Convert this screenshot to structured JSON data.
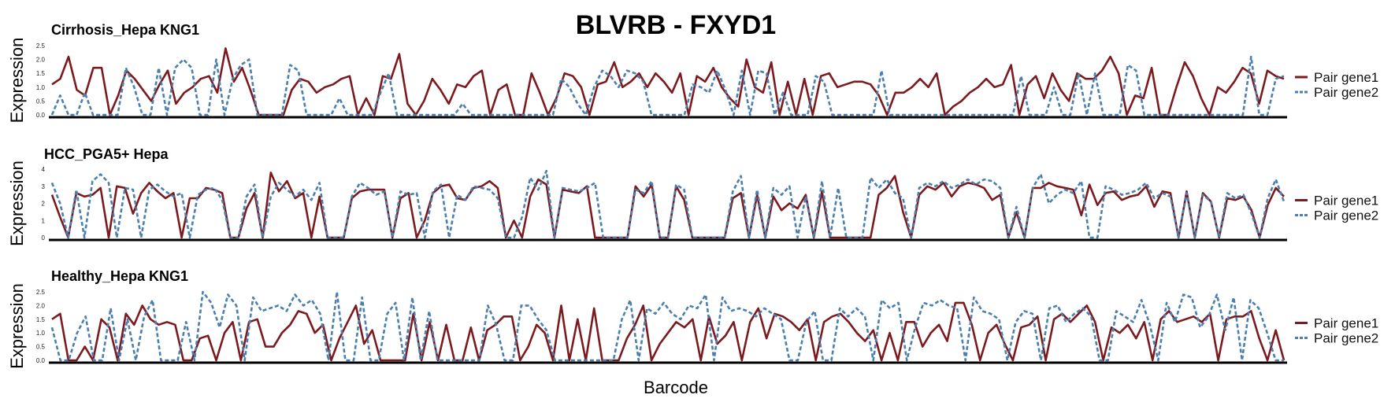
{
  "title": "BLVRB - FXYD1",
  "chart_data": {
    "type": "line",
    "title": "BLVRB - FXYD1",
    "xlabel": "Barcode",
    "ylabel": "Expression",
    "legend_position": "right",
    "colors": {
      "gene1": "#7b1a1f",
      "gene2": "#4a7fb0"
    },
    "legend": [
      "Pair gene1",
      "Pair gene2"
    ],
    "panels": [
      {
        "title": "Cirrhosis_Hepa KNG1",
        "ylim": [
          0,
          2.5
        ],
        "yticks": [
          "0.0",
          "0.5",
          "1.0",
          "1.5",
          "2.0",
          "2.5"
        ],
        "series": [
          {
            "name": "Pair gene1",
            "style": "solid",
            "values": [
              1.1,
              1.3,
              2.1,
              0.9,
              0.7,
              1.7,
              1.7,
              0.0,
              0.7,
              1.6,
              1.3,
              0.9,
              0.5,
              1.1,
              1.6,
              0.4,
              0.8,
              1.0,
              1.3,
              1.4,
              0.8,
              2.4,
              1.2,
              1.7,
              0.9,
              0.0,
              0.0,
              0.0,
              0.0,
              0.9,
              1.3,
              1.2,
              0.8,
              1.0,
              1.1,
              1.3,
              1.4,
              0.0,
              0.6,
              0.0,
              1.4,
              1.3,
              2.2,
              0.4,
              0.0,
              0.5,
              1.3,
              0.9,
              0.4,
              1.1,
              1.0,
              1.4,
              1.6,
              0.0,
              0.9,
              1.1,
              0.0,
              0.0,
              1.5,
              0.8,
              0.0,
              0.6,
              1.5,
              1.4,
              1.0,
              0.0,
              1.1,
              1.2,
              1.9,
              1.0,
              1.2,
              1.5,
              1.0,
              1.5,
              1.2,
              0.8,
              1.5,
              0.0,
              1.4,
              1.2,
              1.7,
              1.0,
              0.6,
              0.3,
              2.0,
              1.0,
              0.8,
              1.9,
              0.0,
              1.2,
              0.0,
              1.3,
              0.0,
              1.4,
              1.5,
              1.0,
              1.1,
              1.2,
              1.2,
              1.1,
              0.7,
              0.0,
              0.8,
              0.8,
              1.0,
              1.3,
              1.0,
              1.5,
              0.0,
              0.3,
              0.5,
              0.8,
              1.0,
              1.3,
              1.0,
              1.1,
              1.8,
              0.0,
              1.1,
              1.4,
              0.6,
              1.5,
              0.9,
              0.5,
              1.5,
              1.3,
              1.3,
              1.6,
              2.1,
              1.5,
              0.0,
              0.7,
              0.6,
              1.7,
              0.0,
              0.0,
              1.0,
              1.9,
              1.4,
              0.6,
              0.0,
              1.0,
              0.8,
              1.2,
              1.7,
              1.5,
              0.4,
              1.6,
              1.4,
              1.3
            ]
          },
          {
            "name": "Pair gene2",
            "style": "dashed",
            "values": [
              0.0,
              0.7,
              0.0,
              0.0,
              0.8,
              0.0,
              0.0,
              0.0,
              0.0,
              1.7,
              1.0,
              0.0,
              0.0,
              1.7,
              0.0,
              1.7,
              2.0,
              1.7,
              0.0,
              0.0,
              2.0,
              0.0,
              1.3,
              1.8,
              2.0,
              0.0,
              0.0,
              0.0,
              0.0,
              1.8,
              1.6,
              0.0,
              0.0,
              0.0,
              0.0,
              0.6,
              0.0,
              0.0,
              0.0,
              0.0,
              0.8,
              1.5,
              0.0,
              0.0,
              0.0,
              0.0,
              0.0,
              0.0,
              0.0,
              0.0,
              0.4,
              0.0,
              0.0,
              0.0,
              0.0,
              0.0,
              0.0,
              0.0,
              0.0,
              0.0,
              0.0,
              0.0,
              1.3,
              1.0,
              0.4,
              0.0,
              1.0,
              1.6,
              1.4,
              1.0,
              1.6,
              1.5,
              1.2,
              0.0,
              0.0,
              0.0,
              0.0,
              0.0,
              1.1,
              1.0,
              0.8,
              1.6,
              0.9,
              0.0,
              1.6,
              0.0,
              1.6,
              1.5,
              0.0,
              0.8,
              0.0,
              0.0,
              0.0,
              1.4,
              1.2,
              0.0,
              0.0,
              0.0,
              0.0,
              0.0,
              0.0,
              1.6,
              0.0,
              0.0,
              0.0,
              0.0,
              0.0,
              0.0,
              0.0,
              0.0,
              0.0,
              0.0,
              0.0,
              0.0,
              0.0,
              0.0,
              0.0,
              0.0,
              1.4,
              0.0,
              0.0,
              0.0,
              1.0,
              0.0,
              0.0,
              1.5,
              0.0,
              1.5,
              0.0,
              0.0,
              0.0,
              1.8,
              1.6,
              0.0,
              0.0,
              0.0,
              0.0,
              0.0,
              0.0,
              0.0,
              0.0,
              0.0,
              0.0,
              0.0,
              0.0,
              0.0,
              2.1,
              0.0,
              0.0,
              1.3,
              1.4
            ]
          }
        ]
      },
      {
        "title": "HCC_PGA5+ Hepa",
        "ylim": [
          0,
          4
        ],
        "yticks": [
          "0",
          "1",
          "2",
          "3",
          "4"
        ],
        "series": [
          {
            "name": "Pair gene1",
            "style": "solid",
            "values": [
              2.5,
              1.2,
              0.0,
              2.6,
              2.4,
              2.5,
              2.9,
              0.0,
              3.0,
              2.9,
              1.4,
              2.6,
              3.2,
              2.7,
              2.3,
              2.6,
              0.0,
              2.3,
              2.3,
              2.9,
              2.8,
              2.6,
              0.0,
              0.0,
              1.7,
              2.6,
              0.0,
              3.8,
              2.7,
              3.3,
              2.3,
              2.6,
              0.0,
              2.4,
              0.0,
              0.0,
              0.0,
              2.3,
              2.7,
              2.8,
              2.8,
              2.8,
              0.0,
              2.3,
              2.6,
              0.0,
              1.0,
              2.6,
              3.0,
              3.1,
              2.3,
              2.2,
              2.9,
              3.0,
              3.3,
              2.9,
              0.0,
              1.0,
              0.0,
              2.4,
              3.4,
              3.1,
              0.0,
              2.8,
              2.7,
              2.6,
              3.0,
              0.0,
              0.0,
              0.0,
              0.0,
              0.0,
              3.0,
              2.4,
              3.1,
              0.0,
              0.0,
              3.0,
              2.2,
              0.0,
              0.0,
              0.0,
              0.0,
              0.0,
              2.3,
              2.6,
              0.0,
              2.5,
              0.0,
              2.4,
              1.6,
              2.0,
              1.7,
              2.5,
              0.0,
              2.7,
              0.0,
              0.0,
              0.0,
              0.0,
              0.0,
              0.0,
              2.5,
              2.9,
              3.6,
              1.5,
              0.0,
              2.5,
              3.0,
              2.8,
              3.2,
              2.4,
              3.0,
              3.2,
              3.1,
              2.9,
              2.2,
              2.5,
              0.0,
              1.5,
              0.0,
              2.9,
              2.9,
              3.2,
              3.0,
              2.9,
              2.8,
              1.3,
              3.1,
              1.9,
              2.6,
              2.7,
              2.2,
              2.4,
              2.5,
              3.0,
              1.8,
              2.7,
              2.6,
              0.0,
              2.7,
              0.0,
              2.6,
              2.1,
              0.0,
              2.3,
              2.2,
              2.4,
              1.6,
              0.0,
              1.9,
              2.9,
              2.4
            ]
          },
          {
            "name": "Pair gene2",
            "style": "dashed",
            "values": [
              3.2,
              2.0,
              0.0,
              2.8,
              0.0,
              3.3,
              3.7,
              3.2,
              0.0,
              2.9,
              2.8,
              0.0,
              2.8,
              3.1,
              2.7,
              2.4,
              2.6,
              0.0,
              2.5,
              2.8,
              2.9,
              2.2,
              0.0,
              0.0,
              2.4,
              3.1,
              0.0,
              2.4,
              3.2,
              2.8,
              2.4,
              2.8,
              2.2,
              3.2,
              0.0,
              0.0,
              0.0,
              2.4,
              3.2,
              2.9,
              2.5,
              2.7,
              0.0,
              2.7,
              2.5,
              2.6,
              0.0,
              2.7,
              3.1,
              0.0,
              2.5,
              2.2,
              3.0,
              2.9,
              2.8,
              2.3,
              0.0,
              0.0,
              1.2,
              3.5,
              2.8,
              3.9,
              0.0,
              2.9,
              2.8,
              2.7,
              2.9,
              3.2,
              0.0,
              0.0,
              0.0,
              0.0,
              2.8,
              2.6,
              3.3,
              0.0,
              0.0,
              3.1,
              2.8,
              0.0,
              0.0,
              0.0,
              0.0,
              0.0,
              2.7,
              3.6,
              0.0,
              2.8,
              0.0,
              2.9,
              2.5,
              3.0,
              0.0,
              2.4,
              0.0,
              3.3,
              0.0,
              2.9,
              0.0,
              0.0,
              0.0,
              3.5,
              2.9,
              3.4,
              2.6,
              2.3,
              0.0,
              2.9,
              3.2,
              3.0,
              3.3,
              2.9,
              3.1,
              3.4,
              3.1,
              3.4,
              3.3,
              2.9,
              0.0,
              1.8,
              0.0,
              2.9,
              3.7,
              2.0,
              2.5,
              2.8,
              2.6,
              3.3,
              0.0,
              0.0,
              3.0,
              2.8,
              2.5,
              2.6,
              2.8,
              3.2,
              2.3,
              2.6,
              2.4,
              0.0,
              2.6,
              0.0,
              2.5,
              2.1,
              0.0,
              2.6,
              2.3,
              2.5,
              1.4,
              0.0,
              2.3,
              3.4,
              2.1
            ]
          }
        ]
      },
      {
        "title": "Healthy_Hepa KNG1",
        "ylim": [
          0,
          2.5
        ],
        "yticks": [
          "0.0",
          "0.5",
          "1.0",
          "1.5",
          "2.0",
          "2.5"
        ],
        "series": [
          {
            "name": "Pair gene1",
            "style": "solid",
            "values": [
              1.5,
              1.7,
              0.0,
              0.0,
              0.5,
              0.0,
              1.5,
              1.2,
              0.0,
              1.7,
              1.3,
              2.0,
              1.5,
              1.3,
              1.4,
              1.3,
              0.0,
              0.0,
              0.8,
              0.9,
              0.0,
              1.0,
              1.4,
              0.0,
              1.4,
              1.5,
              0.5,
              0.5,
              1.0,
              1.3,
              1.8,
              1.7,
              1.0,
              1.3,
              0.0,
              0.8,
              1.4,
              2.0,
              0.6,
              1.1,
              0.0,
              0.0,
              0.0,
              0.0,
              1.7,
              0.0,
              1.4,
              0.0,
              1.3,
              0.0,
              0.0,
              1.2,
              0.0,
              1.1,
              1.3,
              1.6,
              1.6,
              0.0,
              0.5,
              1.3,
              1.0,
              0.0,
              2.0,
              0.0,
              1.5,
              0.0,
              1.9,
              0.0,
              0.0,
              0.0,
              0.8,
              1.3,
              2.0,
              0.0,
              0.6,
              1.0,
              1.4,
              1.2,
              1.5,
              0.0,
              1.6,
              0.6,
              0.9,
              1.4,
              0.0,
              1.4,
              1.9,
              0.8,
              1.7,
              1.6,
              1.4,
              1.1,
              1.5,
              0.0,
              1.4,
              1.6,
              1.7,
              1.4,
              1.0,
              0.7,
              1.1,
              0.0,
              1.0,
              0.0,
              1.4,
              1.4,
              0.5,
              1.0,
              1.3,
              0.7,
              2.1,
              2.1,
              1.3,
              0.0,
              1.0,
              1.3,
              0.6,
              0.0,
              1.2,
              1.3,
              1.6,
              0.0,
              1.5,
              1.7,
              1.4,
              1.7,
              2.0,
              1.4,
              0.0,
              1.2,
              1.0,
              1.3,
              0.8,
              1.4,
              0.0,
              1.5,
              1.8,
              1.4,
              1.5,
              1.6,
              1.4,
              1.7,
              0.0,
              1.5,
              1.6,
              1.6,
              1.8,
              0.8,
              0.0,
              1.1,
              0.0
            ]
          },
          {
            "name": "Pair gene2",
            "style": "dashed",
            "values": [
              1.2,
              0.0,
              0.0,
              1.0,
              1.6,
              0.0,
              0.0,
              1.9,
              0.0,
              1.5,
              0.0,
              1.6,
              2.2,
              0.0,
              0.0,
              0.0,
              1.4,
              0.0,
              2.5,
              2.1,
              1.2,
              2.4,
              2.0,
              0.0,
              2.3,
              1.8,
              1.9,
              2.0,
              1.8,
              2.4,
              2.0,
              2.2,
              1.7,
              0.0,
              2.5,
              0.0,
              0.0,
              2.3,
              0.0,
              0.0,
              1.7,
              2.1,
              0.0,
              2.3,
              0.0,
              1.8,
              0.0,
              0.0,
              0.0,
              0.0,
              0.0,
              0.0,
              2.0,
              1.3,
              0.0,
              0.0,
              2.0,
              2.0,
              1.5,
              1.1,
              0.0,
              0.0,
              0.0,
              0.0,
              0.0,
              0.0,
              0.0,
              0.0,
              1.5,
              2.2,
              0.0,
              1.9,
              1.7,
              2.1,
              1.7,
              1.5,
              2.0,
              1.9,
              2.4,
              0.0,
              2.3,
              1.8,
              1.9,
              1.8,
              1.6,
              1.9,
              1.7,
              1.5,
              0.0,
              0.0,
              1.4,
              1.8,
              0.0,
              0.0,
              1.9,
              1.6,
              1.9,
              1.6,
              0.0,
              2.2,
              1.9,
              2.1,
              0.0,
              1.2,
              2.1,
              2.0,
              2.2,
              2.0,
              1.9,
              0.0,
              2.3,
              1.8,
              1.7,
              1.5,
              0.0,
              1.4,
              1.8,
              1.7,
              0.0,
              1.9,
              2.0,
              1.4,
              1.7,
              1.9,
              1.6,
              0.0,
              0.0,
              1.8,
              1.6,
              1.4,
              2.2,
              1.3,
              0.0,
              2.1,
              1.4,
              2.4,
              2.3,
              1.2,
              1.6,
              2.4,
              1.1,
              2.3,
              0.0,
              2.2,
              1.9,
              1.0,
              0.0,
              0.0
            ]
          }
        ]
      }
    ]
  }
}
